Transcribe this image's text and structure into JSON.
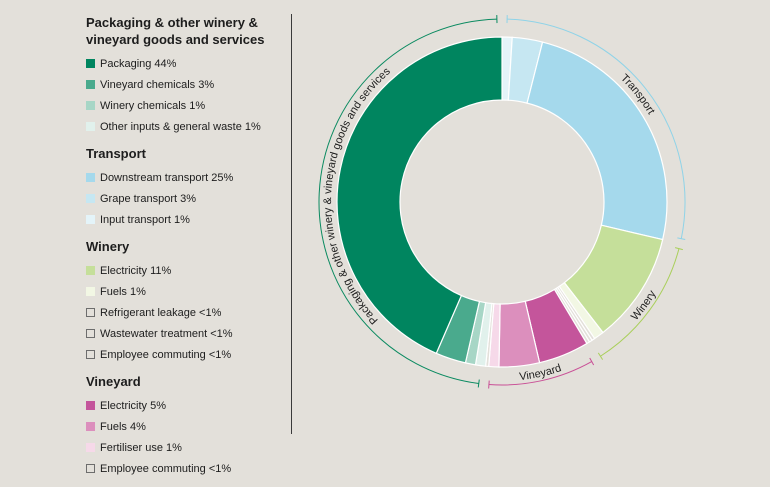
{
  "chart_data": {
    "type": "pie",
    "donut": true,
    "groups": [
      {
        "name": "Packaging & other winery & vineyard goods and services",
        "arc_label": "Packaging & other winery & vineyard goods and services",
        "arc_color": "#0a8a60",
        "items": [
          {
            "label": "Packaging 44%",
            "value": 44,
            "color": "#00855f",
            "outline": false
          },
          {
            "label": "Vineyard chemicals 3%",
            "value": 3,
            "color": "#4aaa8d",
            "outline": false
          },
          {
            "label": "Winery chemicals 1%",
            "value": 1,
            "color": "#a7d6c6",
            "outline": false
          },
          {
            "label": "Other inputs & general waste 1%",
            "value": 1,
            "color": "#e1f1ec",
            "outline": false
          }
        ]
      },
      {
        "name": "Transport",
        "arc_label": "Transport",
        "arc_color": "#8fd3e8",
        "items": [
          {
            "label": "Downstream transport 25%",
            "value": 25,
            "color": "#a5d9ec",
            "outline": false
          },
          {
            "label": "Grape transport 3%",
            "value": 3,
            "color": "#c6e7f2",
            "outline": false
          },
          {
            "label": "Input transport 1%",
            "value": 1,
            "color": "#e4f4f9",
            "outline": false
          }
        ]
      },
      {
        "name": "Winery",
        "arc_label": "Winery",
        "arc_color": "#a9cf5a",
        "items": [
          {
            "label": "Electricity 11%",
            "value": 11,
            "color": "#c5df9a",
            "outline": false
          },
          {
            "label": "Fuels 1%",
            "value": 1,
            "color": "#f2f7e4",
            "outline": false
          },
          {
            "label": "Refrigerant leakage <1%",
            "value": 0.3,
            "color": "#e3e0da",
            "outline": true
          },
          {
            "label": "Wastewater treatment <1%",
            "value": 0.3,
            "color": "#e3e0da",
            "outline": true
          },
          {
            "label": "Employee commuting <1%",
            "value": 0.3,
            "color": "#e3e0da",
            "outline": true
          }
        ]
      },
      {
        "name": "Vineyard",
        "arc_label": "Vineyard",
        "arc_color": "#c94f96",
        "items": [
          {
            "label": "Electricity 5%",
            "value": 5,
            "color": "#c4559b",
            "outline": false
          },
          {
            "label": "Fuels 4%",
            "value": 4,
            "color": "#dc8fbd",
            "outline": false
          },
          {
            "label": "Fertiliser use 1%",
            "value": 1,
            "color": "#f6d9e9",
            "outline": false
          },
          {
            "label": "Employee commuting <1%",
            "value": 0.3,
            "color": "#e3e0da",
            "outline": true
          }
        ]
      }
    ],
    "ring_order": [
      "Transport",
      "Winery",
      "Vineyard",
      "Packaging & other winery & vineyard goods and services"
    ]
  }
}
